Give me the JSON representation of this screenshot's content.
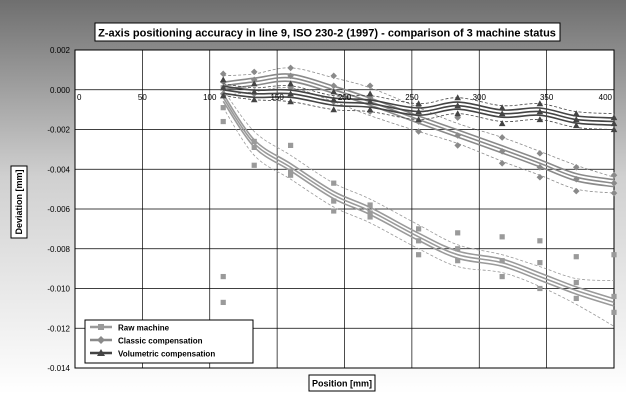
{
  "chart_data": {
    "type": "line",
    "title": "Z-axis positioning accuracy in line 9, ISO 230-2 (1997) - comparison of 3 machine status",
    "xlabel": "Position [mm]",
    "ylabel": "Deviation [mm]",
    "xlim": [
      0,
      400
    ],
    "ylim": [
      -0.014,
      0.002
    ],
    "xticks": [
      "0",
      "50",
      "100",
      "150",
      "200",
      "250",
      "300",
      "350",
      "400"
    ],
    "yticks": [
      "0.002",
      "0.000",
      "-0.002",
      "-0.004",
      "-0.006",
      "-0.008",
      "-0.010",
      "-0.012",
      "-0.014"
    ],
    "grid": true,
    "legend_position": "bottom-left",
    "x": [
      110,
      133,
      160,
      192,
      219,
      255,
      284,
      317,
      345,
      372,
      400
    ],
    "series": [
      {
        "name": "Raw machine",
        "marker": "square",
        "color": "#9a9a9a",
        "mean": [
          -0.0004,
          -0.0027,
          -0.0039,
          -0.0053,
          -0.0061,
          -0.0074,
          -0.0083,
          -0.0087,
          -0.0094,
          -0.0101,
          -0.0107
        ],
        "upper": [
          0.0,
          -0.0021,
          -0.0033,
          -0.0047,
          -0.0055,
          -0.0068,
          -0.0078,
          -0.0083,
          -0.0089,
          -0.0095,
          -0.0096
        ],
        "lower": [
          -0.0009,
          -0.0033,
          -0.0045,
          -0.0059,
          -0.0067,
          -0.008,
          -0.0089,
          -0.0092,
          -0.0099,
          -0.0108,
          -0.0119
        ],
        "points": [
          0.0001,
          -0.0009,
          -0.0016,
          -0.0026,
          -0.0029,
          -0.0038,
          -0.0028,
          -0.0043,
          -0.0041,
          -0.0056,
          -0.0061,
          -0.0047,
          -0.0058,
          -0.0064,
          -0.0062,
          -0.007,
          -0.0076,
          -0.0083,
          -0.0072,
          -0.008,
          -0.0086,
          -0.0074,
          -0.0086,
          -0.0094,
          -0.0076,
          -0.0087,
          -0.01,
          -0.0084,
          -0.0097,
          -0.0105,
          -0.0083,
          -0.0104,
          -0.0112,
          -0.0094,
          -0.0107,
          -0.012
        ]
      },
      {
        "name": "Classic compensation",
        "marker": "diamond",
        "color": "#8a8a8a",
        "mean": [
          0.0002,
          0.0004,
          0.0006,
          0.0,
          -0.0006,
          -0.0015,
          -0.0022,
          -0.003,
          -0.0037,
          -0.0044,
          -0.0047
        ],
        "upper": [
          0.0007,
          0.0008,
          0.0011,
          0.0006,
          0.0001,
          -0.0009,
          -0.0017,
          -0.0024,
          -0.0031,
          -0.0038,
          -0.0044
        ],
        "lower": [
          -0.0003,
          -0.0001,
          0.0001,
          -0.0006,
          -0.0013,
          -0.0021,
          -0.0027,
          -0.0036,
          -0.0043,
          -0.005,
          -0.0052
        ],
        "points": [
          0.0008,
          0.0004,
          -0.0002,
          0.0009,
          0.0005,
          -0.0002,
          0.0011,
          0.0007,
          0.0001,
          0.0007,
          0.0002,
          -0.0006,
          0.0002,
          -0.0004,
          -0.0011,
          -0.0008,
          -0.0016,
          -0.0021,
          -0.0014,
          -0.0023,
          -0.0028,
          -0.0024,
          -0.0031,
          -0.0037,
          -0.0032,
          -0.0039,
          -0.0044,
          -0.0039,
          -0.0045,
          -0.0051,
          -0.0043,
          -0.0047,
          -0.0052
        ]
      },
      {
        "name": "Volumetric compensation",
        "marker": "triangle",
        "color": "#444444",
        "mean": [
          0.0,
          -0.0002,
          -0.0002,
          -0.0006,
          -0.0007,
          -0.0011,
          -0.0008,
          -0.0012,
          -0.0011,
          -0.0015,
          -0.0016
        ],
        "upper": [
          0.0003,
          0.0001,
          0.0002,
          -0.0003,
          -0.0003,
          -0.0007,
          -0.0004,
          -0.0008,
          -0.0007,
          -0.0011,
          -0.0012
        ],
        "lower": [
          -0.0003,
          -0.0005,
          -0.0006,
          -0.001,
          -0.0011,
          -0.0015,
          -0.0012,
          -0.0016,
          -0.0015,
          -0.0019,
          -0.002
        ],
        "points": [
          0.0005,
          0.0001,
          -0.0003,
          0.0003,
          -0.0001,
          -0.0005,
          0.0003,
          -0.0002,
          -0.0006,
          -0.0001,
          -0.0005,
          -0.001,
          -0.0002,
          -0.0006,
          -0.001,
          -0.0007,
          -0.0011,
          -0.0015,
          -0.0004,
          -0.0008,
          -0.0012,
          -0.0009,
          -0.0012,
          -0.0017,
          -0.0007,
          -0.0011,
          -0.0015,
          -0.0012,
          -0.0015,
          -0.0018,
          -0.0014,
          -0.0017,
          -0.002
        ]
      }
    ]
  }
}
